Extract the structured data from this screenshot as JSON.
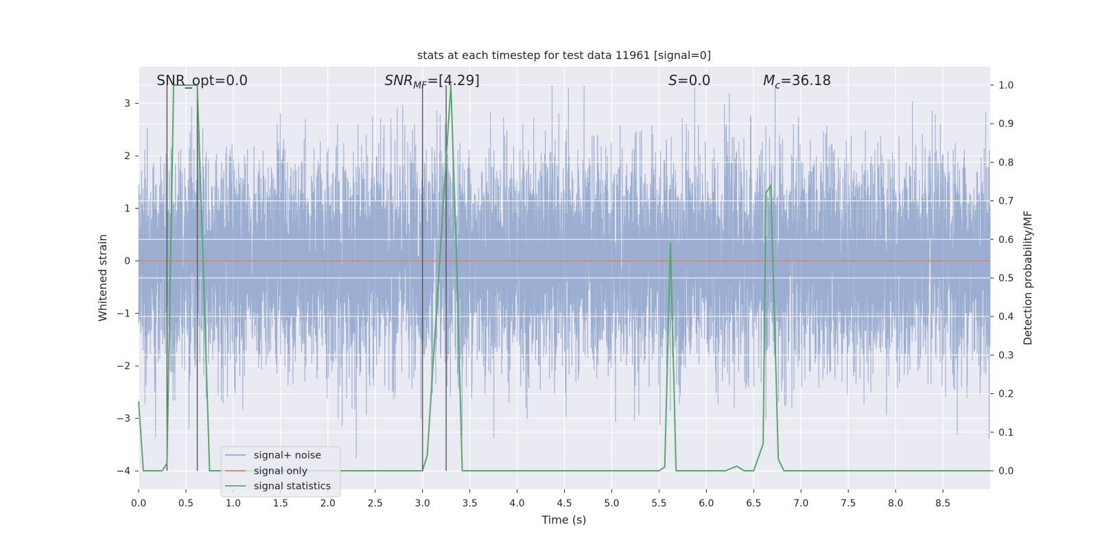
{
  "chart_data": {
    "type": "line",
    "title": "stats at each timestep for test data 11961 [signal=0]",
    "xlabel": "Time (s)",
    "ylabel_left": "Whitened strain",
    "ylabel_right": "Detection probability/MF",
    "xlim": [
      0.0,
      9.0
    ],
    "ylim_left": [
      -4.35,
      3.7
    ],
    "ylim_right": [
      -0.048,
      1.048
    ],
    "xticks": [
      "0.0",
      "0.5",
      "1.0",
      "1.5",
      "2.0",
      "2.5",
      "3.0",
      "3.5",
      "4.0",
      "4.5",
      "5.0",
      "5.5",
      "6.0",
      "6.5",
      "7.0",
      "7.5",
      "8.0",
      "8.5"
    ],
    "yticks_left": [
      "−4",
      "−3",
      "−2",
      "−1",
      "0",
      "1",
      "2",
      "3"
    ],
    "yticks_right": [
      "0.0",
      "0.1",
      "0.2",
      "0.3",
      "0.4",
      "0.5",
      "0.6",
      "0.7",
      "0.8",
      "0.9",
      "1.0"
    ],
    "annotations": {
      "snr_opt": {
        "label": "SNR_opt=0.0",
        "x": 0.19
      },
      "snr_mf": {
        "base": "SNR",
        "sub": "MF",
        "value": "=[4.29]",
        "x": 2.6
      },
      "s": {
        "base": "S",
        "value": "=0.0",
        "x": 5.6
      },
      "mc": {
        "base": "M",
        "sub": "c",
        "value": "=36.18",
        "x": 6.6
      }
    },
    "legend": {
      "position": "lower-left",
      "entries": [
        "signal+ noise",
        "signal only",
        "signal statistics"
      ]
    },
    "series": [
      {
        "name": "signal+ noise",
        "axis": "left",
        "color": "#4c72b0",
        "kind": "noise",
        "amplitude_std": 1.0,
        "range": [
          -4.0,
          3.35
        ],
        "samples": 9000
      },
      {
        "name": "signal only",
        "axis": "left",
        "color": "#dd8452",
        "x": [
          0.0,
          9.0
        ],
        "y": [
          0.0,
          0.0
        ]
      },
      {
        "name": "signal statistics",
        "axis": "right",
        "color": "#55a868",
        "x": [
          0.0,
          0.05,
          0.25,
          0.3,
          0.37,
          0.42,
          0.62,
          0.68,
          0.75,
          0.8,
          3.0,
          3.05,
          3.3,
          3.36,
          3.42,
          5.5,
          5.56,
          5.62,
          5.68,
          5.75,
          5.9,
          6.2,
          6.32,
          6.4,
          6.5,
          6.6,
          6.63,
          6.68,
          6.72,
          6.76,
          6.82,
          9.0
        ],
        "y": [
          0.18,
          0.0,
          0.0,
          0.02,
          1.0,
          1.0,
          1.0,
          0.55,
          0.0,
          0.0,
          0.0,
          0.04,
          1.0,
          0.55,
          0.0,
          0.0,
          0.01,
          0.59,
          0.0,
          0.0,
          0.0,
          0.0,
          0.012,
          0.0,
          0.0,
          0.07,
          0.72,
          0.74,
          0.4,
          0.03,
          0.0,
          0.0
        ]
      }
    ],
    "vertical_lines": [
      {
        "x": 0.3,
        "y_top": 1.0,
        "color": "#555555"
      },
      {
        "x": 0.62,
        "y_top": 1.0,
        "color": "#555555"
      },
      {
        "x": 3.0,
        "y_top": 1.0,
        "color": "#555555"
      },
      {
        "x": 3.25,
        "y_top": 1.0,
        "color": "#555555"
      }
    ],
    "colors": {
      "plot_background": "#eaeaf2",
      "grid": "#ffffff"
    }
  }
}
